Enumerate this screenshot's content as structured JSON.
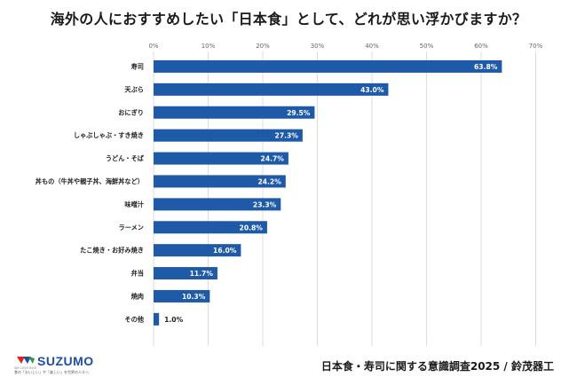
{
  "chart_data": {
    "type": "bar",
    "orientation": "horizontal",
    "title": "海外の人におすすめしたい「日本食」として、どれが思い浮かびますか？",
    "categories": [
      "寿司",
      "天ぷら",
      "おにぎり",
      "しゃぶしゃぶ・すき焼き",
      "うどん・そば",
      "丼もの（牛丼や親子丼、海鮮丼など）",
      "味噌汁",
      "ラーメン",
      "たこ焼き・お好み焼き",
      "弁当",
      "焼肉",
      "その他"
    ],
    "values": [
      63.8,
      43.0,
      29.5,
      27.3,
      24.7,
      24.2,
      23.3,
      20.8,
      16.0,
      11.7,
      10.3,
      1.0
    ],
    "value_labels": [
      "63.8%",
      "43.0%",
      "29.5%",
      "27.3%",
      "24.7%",
      "24.2%",
      "23.3%",
      "20.8%",
      "16.0%",
      "11.7%",
      "10.3%",
      "1.0%"
    ],
    "x_ticks": [
      "0%",
      "10%",
      "20%",
      "30%",
      "40%",
      "50%",
      "60%",
      "70%"
    ],
    "xlim": [
      0,
      70
    ],
    "grid": true,
    "bar_color": "#1e5aa8"
  },
  "footer": {
    "source": "日本食・寿司に関する意識調査2025 / 鈴茂器工"
  },
  "logo": {
    "name": "SUZUMO",
    "tag": "WE LOVE RICE",
    "tagline": "食の「おいしい」や「楽しい」を世界の人々へ"
  }
}
